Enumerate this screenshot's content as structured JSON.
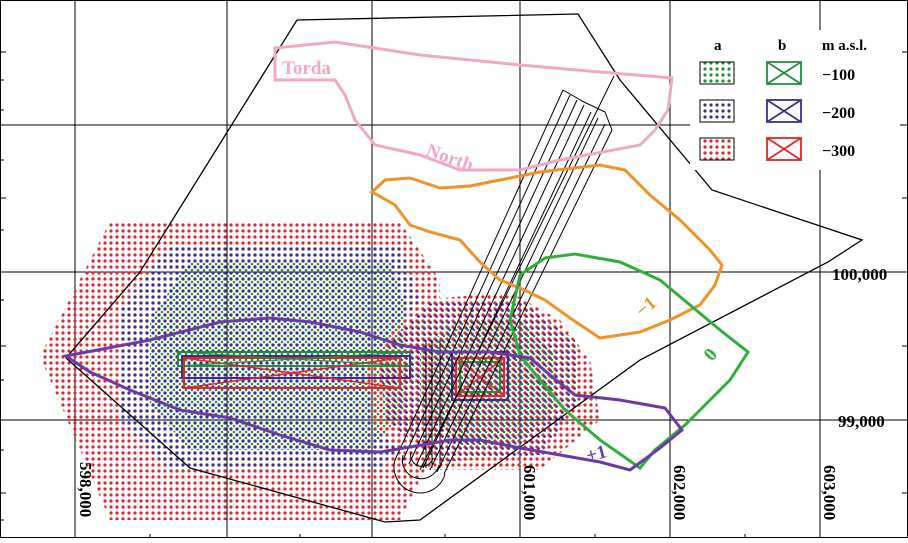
{
  "map": {
    "area_labels": {
      "torda": "Torda",
      "north": "North"
    },
    "contours": {
      "minus1": "−1",
      "zero": "0",
      "plus1": "+1"
    },
    "axes": {
      "x_ticks": [
        "598,000",
        "601,000",
        "602,000",
        "603,000"
      ],
      "y_ticks": [
        "100,000",
        "99,000"
      ]
    },
    "legend": {
      "col_a": "a",
      "col_b": "b",
      "col_level": "m a.s.l.",
      "rows": [
        {
          "level": "−100",
          "color": "#1f8f3a"
        },
        {
          "level": "−200",
          "color": "#3a2f8f"
        },
        {
          "level": "−300",
          "color": "#e0262b"
        }
      ]
    },
    "colors": {
      "torda_north": "#f2a7c7",
      "contour_minus1": "#f0922a",
      "contour_zero": "#2fae3d",
      "contour_plus1": "#6a3aa5",
      "dots_red": "#e0262b",
      "dots_blue": "#3a2f8f",
      "dots_green": "#1f8f3a"
    }
  }
}
